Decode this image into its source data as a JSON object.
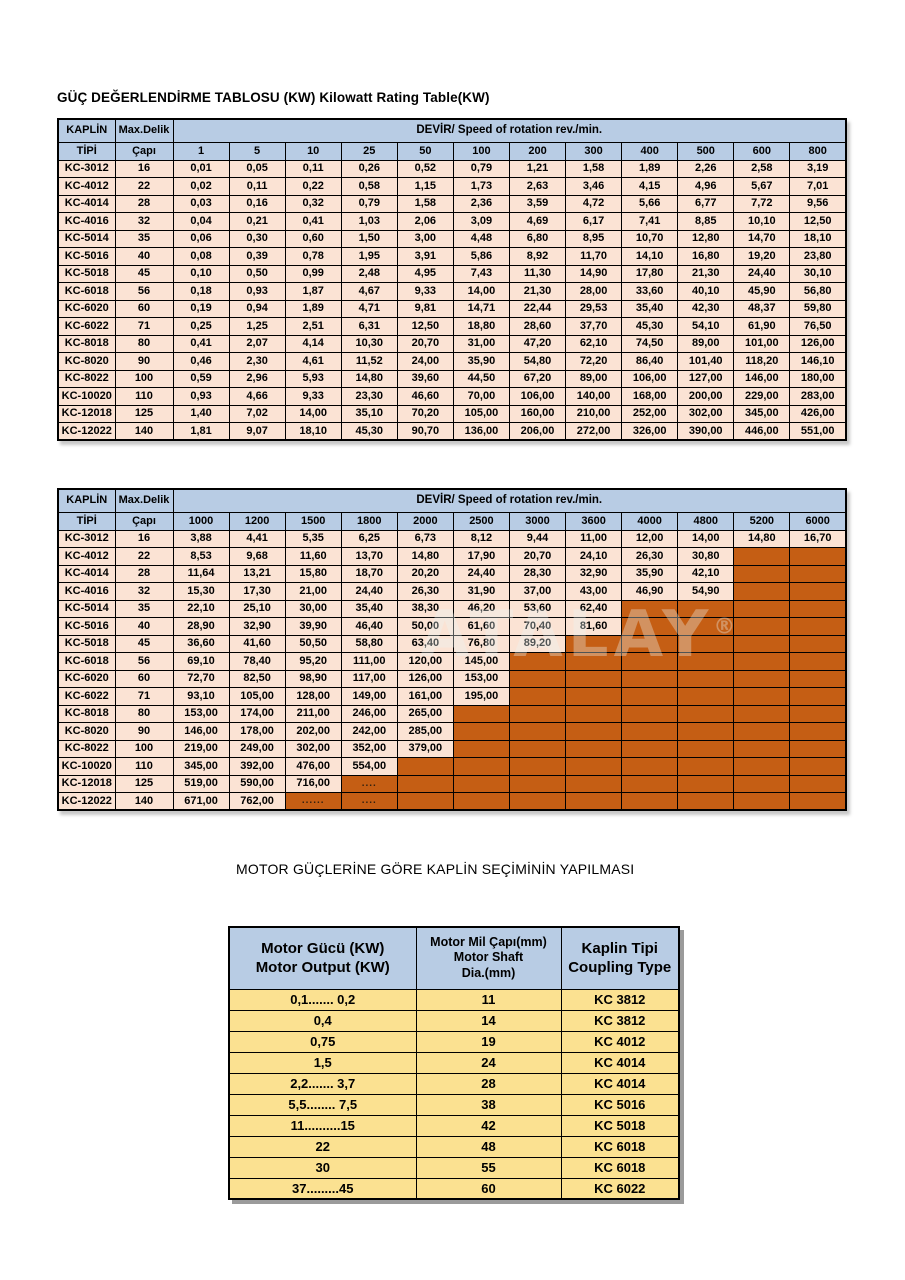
{
  "page": {
    "title": "GÜÇ DEĞERLENDİRME TABLOSU (KW) Kilowatt Rating Table(KW)",
    "section_heading": "MOTOR GÜÇLERİNE GÖRE KAPLİN SEÇİMİNİN YAPILMASI",
    "watermark": "ATALAY",
    "watermark_reg": "®"
  },
  "colors": {
    "header_blue": "#b8cce4",
    "cell_peach": "#fbe3d4",
    "cell_orange": "#c55e14",
    "cell_yellow": "#fbe191",
    "border": "#000000"
  },
  "rating_header": {
    "col1_line1": "KAPLİN",
    "col1_line2": "TİPİ",
    "col2_line1": "Max.Delik",
    "col2_line2": "Çapı",
    "devir": "DEVİR/ Speed of rotation rev./min."
  },
  "table_low_speed": {
    "speeds": [
      "1",
      "5",
      "10",
      "25",
      "50",
      "100",
      "200",
      "300",
      "400",
      "500",
      "600",
      "800"
    ],
    "rows": [
      {
        "type": "KC-3012",
        "bore": "16",
        "values": [
          "0,01",
          "0,05",
          "0,11",
          "0,26",
          "0,52",
          "0,79",
          "1,21",
          "1,58",
          "1,89",
          "2,26",
          "2,58",
          "3,19"
        ]
      },
      {
        "type": "KC-4012",
        "bore": "22",
        "values": [
          "0,02",
          "0,11",
          "0,22",
          "0,58",
          "1,15",
          "1,73",
          "2,63",
          "3,46",
          "4,15",
          "4,96",
          "5,67",
          "7,01"
        ]
      },
      {
        "type": "KC-4014",
        "bore": "28",
        "values": [
          "0,03",
          "0,16",
          "0,32",
          "0,79",
          "1,58",
          "2,36",
          "3,59",
          "4,72",
          "5,66",
          "6,77",
          "7,72",
          "9,56"
        ]
      },
      {
        "type": "KC-4016",
        "bore": "32",
        "values": [
          "0,04",
          "0,21",
          "0,41",
          "1,03",
          "2,06",
          "3,09",
          "4,69",
          "6,17",
          "7,41",
          "8,85",
          "10,10",
          "12,50"
        ]
      },
      {
        "type": "KC-5014",
        "bore": "35",
        "values": [
          "0,06",
          "0,30",
          "0,60",
          "1,50",
          "3,00",
          "4,48",
          "6,80",
          "8,95",
          "10,70",
          "12,80",
          "14,70",
          "18,10"
        ]
      },
      {
        "type": "KC-5016",
        "bore": "40",
        "values": [
          "0,08",
          "0,39",
          "0,78",
          "1,95",
          "3,91",
          "5,86",
          "8,92",
          "11,70",
          "14,10",
          "16,80",
          "19,20",
          "23,80"
        ]
      },
      {
        "type": "KC-5018",
        "bore": "45",
        "values": [
          "0,10",
          "0,50",
          "0,99",
          "2,48",
          "4,95",
          "7,43",
          "11,30",
          "14,90",
          "17,80",
          "21,30",
          "24,40",
          "30,10"
        ]
      },
      {
        "type": "KC-6018",
        "bore": "56",
        "values": [
          "0,18",
          "0,93",
          "1,87",
          "4,67",
          "9,33",
          "14,00",
          "21,30",
          "28,00",
          "33,60",
          "40,10",
          "45,90",
          "56,80"
        ]
      },
      {
        "type": "KC-6020",
        "bore": "60",
        "values": [
          "0,19",
          "0,94",
          "1,89",
          "4,71",
          "9,81",
          "14,71",
          "22,44",
          "29,53",
          "35,40",
          "42,30",
          "48,37",
          "59,80"
        ]
      },
      {
        "type": "KC-6022",
        "bore": "71",
        "values": [
          "0,25",
          "1,25",
          "2,51",
          "6,31",
          "12,50",
          "18,80",
          "28,60",
          "37,70",
          "45,30",
          "54,10",
          "61,90",
          "76,50"
        ]
      },
      {
        "type": "KC-8018",
        "bore": "80",
        "values": [
          "0,41",
          "2,07",
          "4,14",
          "10,30",
          "20,70",
          "31,00",
          "47,20",
          "62,10",
          "74,50",
          "89,00",
          "101,00",
          "126,00"
        ]
      },
      {
        "type": "KC-8020",
        "bore": "90",
        "values": [
          "0,46",
          "2,30",
          "4,61",
          "11,52",
          "24,00",
          "35,90",
          "54,80",
          "72,20",
          "86,40",
          "101,40",
          "118,20",
          "146,10"
        ]
      },
      {
        "type": "KC-8022",
        "bore": "100",
        "values": [
          "0,59",
          "2,96",
          "5,93",
          "14,80",
          "39,60",
          "44,50",
          "67,20",
          "89,00",
          "106,00",
          "127,00",
          "146,00",
          "180,00"
        ]
      },
      {
        "type": "KC-10020",
        "bore": "110",
        "values": [
          "0,93",
          "4,66",
          "9,33",
          "23,30",
          "46,60",
          "70,00",
          "106,00",
          "140,00",
          "168,00",
          "200,00",
          "229,00",
          "283,00"
        ]
      },
      {
        "type": "KC-12018",
        "bore": "125",
        "values": [
          "1,40",
          "7,02",
          "14,00",
          "35,10",
          "70,20",
          "105,00",
          "160,00",
          "210,00",
          "252,00",
          "302,00",
          "345,00",
          "426,00"
        ]
      },
      {
        "type": "KC-12022",
        "bore": "140",
        "values": [
          "1,81",
          "9,07",
          "18,10",
          "45,30",
          "90,70",
          "136,00",
          "206,00",
          "272,00",
          "326,00",
          "390,00",
          "446,00",
          "551,00"
        ]
      }
    ]
  },
  "table_high_speed": {
    "speeds": [
      "1000",
      "1200",
      "1500",
      "1800",
      "2000",
      "2500",
      "3000",
      "3600",
      "4000",
      "4800",
      "5200",
      "6000"
    ],
    "rows": [
      {
        "type": "KC-3012",
        "bore": "16",
        "values": [
          "3,88",
          "4,41",
          "5,35",
          "6,25",
          "6,73",
          "8,12",
          "9,44",
          "11,00",
          "12,00",
          "14,00",
          "14,80",
          "16,70"
        ]
      },
      {
        "type": "KC-4012",
        "bore": "22",
        "values": [
          "8,53",
          "9,68",
          "11,60",
          "13,70",
          "14,80",
          "17,90",
          "20,70",
          "24,10",
          "26,30",
          "30,80",
          null,
          null
        ]
      },
      {
        "type": "KC-4014",
        "bore": "28",
        "values": [
          "11,64",
          "13,21",
          "15,80",
          "18,70",
          "20,20",
          "24,40",
          "28,30",
          "32,90",
          "35,90",
          "42,10",
          null,
          null
        ]
      },
      {
        "type": "KC-4016",
        "bore": "32",
        "values": [
          "15,30",
          "17,30",
          "21,00",
          "24,40",
          "26,30",
          "31,90",
          "37,00",
          "43,00",
          "46,90",
          "54,90",
          null,
          null
        ]
      },
      {
        "type": "KC-5014",
        "bore": "35",
        "values": [
          "22,10",
          "25,10",
          "30,00",
          "35,40",
          "38,30",
          "46,20",
          "53,60",
          "62,40",
          null,
          null,
          null,
          null
        ]
      },
      {
        "type": "KC-5016",
        "bore": "40",
        "values": [
          "28,90",
          "32,90",
          "39,90",
          "46,40",
          "50,00",
          "61,60",
          "70,40",
          "81,60",
          null,
          null,
          null,
          null
        ]
      },
      {
        "type": "KC-5018",
        "bore": "45",
        "values": [
          "36,60",
          "41,60",
          "50,50",
          "58,80",
          "63,40",
          "76,80",
          "89,20",
          null,
          null,
          null,
          null,
          null
        ]
      },
      {
        "type": "KC-6018",
        "bore": "56",
        "values": [
          "69,10",
          "78,40",
          "95,20",
          "111,00",
          "120,00",
          "145,00",
          null,
          null,
          null,
          null,
          null,
          null
        ]
      },
      {
        "type": "KC-6020",
        "bore": "60",
        "values": [
          "72,70",
          "82,50",
          "98,90",
          "117,00",
          "126,00",
          "153,00",
          null,
          null,
          null,
          null,
          null,
          null
        ]
      },
      {
        "type": "KC-6022",
        "bore": "71",
        "values": [
          "93,10",
          "105,00",
          "128,00",
          "149,00",
          "161,00",
          "195,00",
          null,
          null,
          null,
          null,
          null,
          null
        ]
      },
      {
        "type": "KC-8018",
        "bore": "80",
        "values": [
          "153,00",
          "174,00",
          "211,00",
          "246,00",
          "265,00",
          null,
          null,
          null,
          null,
          null,
          null,
          null
        ]
      },
      {
        "type": "KC-8020",
        "bore": "90",
        "values": [
          "146,00",
          "178,00",
          "202,00",
          "242,00",
          "285,00",
          null,
          null,
          null,
          null,
          null,
          null,
          null
        ]
      },
      {
        "type": "KC-8022",
        "bore": "100",
        "values": [
          "219,00",
          "249,00",
          "302,00",
          "352,00",
          "379,00",
          null,
          null,
          null,
          null,
          null,
          null,
          null
        ]
      },
      {
        "type": "KC-10020",
        "bore": "110",
        "values": [
          "345,00",
          "392,00",
          "476,00",
          "554,00",
          null,
          null,
          null,
          null,
          null,
          null,
          null,
          null
        ]
      },
      {
        "type": "KC-12018",
        "bore": "125",
        "values": [
          "519,00",
          "590,00",
          "716,00",
          "....",
          null,
          null,
          null,
          null,
          null,
          null,
          null,
          null
        ]
      },
      {
        "type": "KC-12022",
        "bore": "140",
        "values": [
          "671,00",
          "762,00",
          "......",
          "....",
          null,
          null,
          null,
          null,
          null,
          null,
          null,
          null
        ]
      }
    ]
  },
  "motor_table": {
    "headers": {
      "output_lines": [
        "Motor Gücü (KW)",
        "Motor Output (KW)"
      ],
      "shaft_lines": [
        "Motor Mil Çapı(mm)",
        "Motor Shaft",
        "Dia.(mm)"
      ],
      "coupling_lines": [
        "Kaplin Tipi",
        "Coupling Type"
      ]
    },
    "rows": [
      {
        "output": "0,1....... 0,2",
        "shaft": "11",
        "coupling": "KC 3812"
      },
      {
        "output": "0,4",
        "shaft": "14",
        "coupling": "KC 3812"
      },
      {
        "output": "0,75",
        "shaft": "19",
        "coupling": "KC 4012"
      },
      {
        "output": "1,5",
        "shaft": "24",
        "coupling": "KC 4014"
      },
      {
        "output": "2,2....... 3,7",
        "shaft": "28",
        "coupling": "KC 4014"
      },
      {
        "output": "5,5........ 7,5",
        "shaft": "38",
        "coupling": "KC 5016"
      },
      {
        "output": "11..........15",
        "shaft": "42",
        "coupling": "KC 5018"
      },
      {
        "output": "22",
        "shaft": "48",
        "coupling": "KC 6018"
      },
      {
        "output": "30",
        "shaft": "55",
        "coupling": "KC 6018"
      },
      {
        "output": "37.........45",
        "shaft": "60",
        "coupling": "KC 6022"
      }
    ]
  }
}
